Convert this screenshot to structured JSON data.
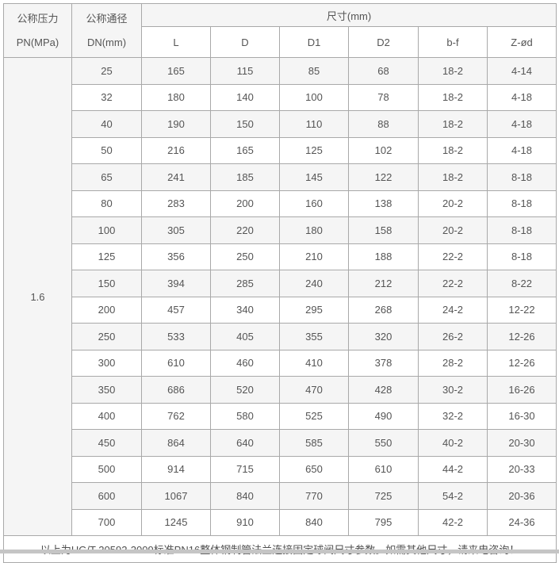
{
  "colors": {
    "border": "#a9a9a9",
    "header_bg": "#f5f5f5",
    "row_alt_bg": "#f5f5f5",
    "row_bg": "#ffffff",
    "text": "#555555",
    "bottom_strip": "#c5c5c5"
  },
  "table": {
    "header": {
      "pressure_label_line1": "公称压力",
      "pressure_label_line2": "PN(MPa)",
      "diameter_label_line1": "公称通径",
      "diameter_label_line2": "DN(mm)",
      "size_group_label": "尺寸(mm)",
      "size_columns": [
        "L",
        "D",
        "D1",
        "D2",
        "b-f",
        "Z-ød"
      ]
    },
    "pressure_value": "1.6",
    "rows": [
      {
        "dn": "25",
        "values": [
          "165",
          "115",
          "85",
          "68",
          "18-2",
          "4-14"
        ]
      },
      {
        "dn": "32",
        "values": [
          "180",
          "140",
          "100",
          "78",
          "18-2",
          "4-18"
        ]
      },
      {
        "dn": "40",
        "values": [
          "190",
          "150",
          "110",
          "88",
          "18-2",
          "4-18"
        ]
      },
      {
        "dn": "50",
        "values": [
          "216",
          "165",
          "125",
          "102",
          "18-2",
          "4-18"
        ]
      },
      {
        "dn": "65",
        "values": [
          "241",
          "185",
          "145",
          "122",
          "18-2",
          "8-18"
        ]
      },
      {
        "dn": "80",
        "values": [
          "283",
          "200",
          "160",
          "138",
          "20-2",
          "8-18"
        ]
      },
      {
        "dn": "100",
        "values": [
          "305",
          "220",
          "180",
          "158",
          "20-2",
          "8-18"
        ]
      },
      {
        "dn": "125",
        "values": [
          "356",
          "250",
          "210",
          "188",
          "22-2",
          "8-18"
        ]
      },
      {
        "dn": "150",
        "values": [
          "394",
          "285",
          "240",
          "212",
          "22-2",
          "8-22"
        ]
      },
      {
        "dn": "200",
        "values": [
          "457",
          "340",
          "295",
          "268",
          "24-2",
          "12-22"
        ]
      },
      {
        "dn": "250",
        "values": [
          "533",
          "405",
          "355",
          "320",
          "26-2",
          "12-26"
        ]
      },
      {
        "dn": "300",
        "values": [
          "610",
          "460",
          "410",
          "378",
          "28-2",
          "12-26"
        ]
      },
      {
        "dn": "350",
        "values": [
          "686",
          "520",
          "470",
          "428",
          "30-2",
          "16-26"
        ]
      },
      {
        "dn": "400",
        "values": [
          "762",
          "580",
          "525",
          "490",
          "32-2",
          "16-30"
        ]
      },
      {
        "dn": "450",
        "values": [
          "864",
          "640",
          "585",
          "550",
          "40-2",
          "20-30"
        ]
      },
      {
        "dn": "500",
        "values": [
          "914",
          "715",
          "650",
          "610",
          "44-2",
          "20-33"
        ]
      },
      {
        "dn": "600",
        "values": [
          "1067",
          "840",
          "770",
          "725",
          "54-2",
          "20-36"
        ]
      },
      {
        "dn": "700",
        "values": [
          "1245",
          "910",
          "840",
          "795",
          "42-2",
          "24-36"
        ]
      }
    ],
    "footer_note": "以上为HG/T 20592-2009标准PN16整体钢制管法兰连接固定球阀尺寸参数。如需其他尺寸，请来电咨询！"
  }
}
